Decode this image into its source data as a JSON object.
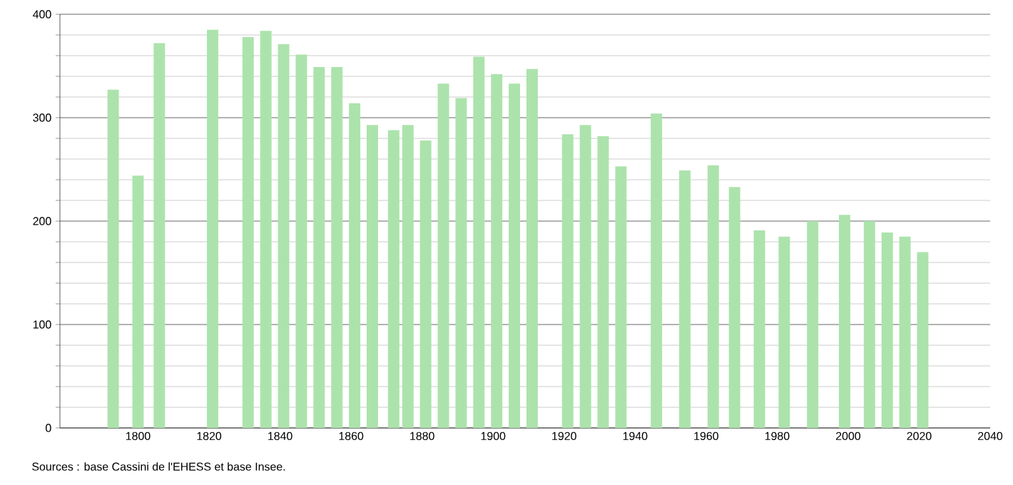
{
  "chart_data": {
    "type": "bar",
    "x": [
      1793,
      1800,
      1806,
      1821,
      1831,
      1836,
      1841,
      1846,
      1851,
      1856,
      1861,
      1866,
      1872,
      1876,
      1881,
      1886,
      1891,
      1896,
      1901,
      1906,
      1911,
      1921,
      1926,
      1931,
      1936,
      1946,
      1954,
      1962,
      1968,
      1975,
      1982,
      1990,
      1999,
      2006,
      2011,
      2016,
      2021
    ],
    "values": [
      327,
      244,
      372,
      385,
      378,
      384,
      371,
      361,
      349,
      349,
      314,
      293,
      288,
      293,
      278,
      333,
      319,
      359,
      342,
      333,
      347,
      284,
      293,
      282,
      253,
      304,
      249,
      254,
      233,
      191,
      185,
      200,
      206,
      200,
      189,
      185,
      170
    ],
    "color": "#ace3ac",
    "xlim": [
      1778,
      2040
    ],
    "xticks": [
      1800,
      1820,
      1840,
      1860,
      1880,
      1900,
      1920,
      1940,
      1960,
      1980,
      2000,
      2020,
      2040
    ],
    "ylim": [
      0,
      400
    ],
    "yticks": [
      0,
      100,
      200,
      300,
      400
    ],
    "grid": "y",
    "annotations": [
      "Sources : base Cassini de l'EHESS et base Insee."
    ]
  }
}
